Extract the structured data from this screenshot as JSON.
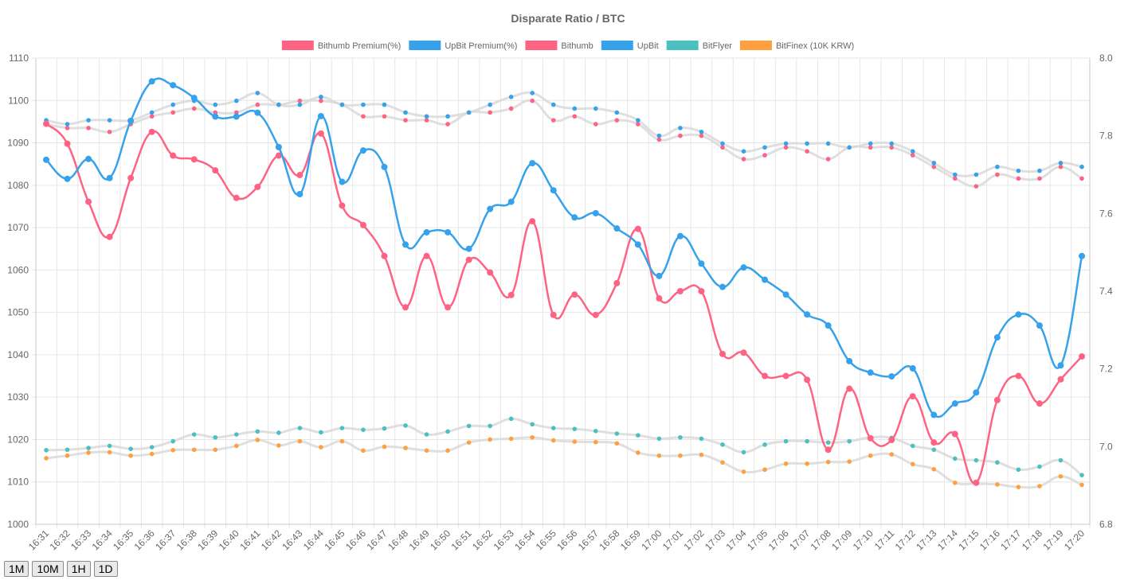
{
  "controls": {
    "range_buttons": [
      "1M",
      "10M",
      "1H",
      "1D"
    ]
  },
  "colors": {
    "bithumb": "#ff6384",
    "upbit": "#36a2eb",
    "bitflyer": "#4bc0c0",
    "bitfinex": "#ff9f40",
    "premium_line": "#d9d9d9",
    "grid": "#e6e6e6",
    "text": "#666666"
  },
  "chart_data": {
    "type": "line",
    "title": "Disparate Ratio / BTC",
    "xlabel": "",
    "ylabel": "",
    "categories": [
      "16:31",
      "16:32",
      "16:33",
      "16:34",
      "16:35",
      "16:36",
      "16:37",
      "16:38",
      "16:39",
      "16:40",
      "16:41",
      "16:42",
      "16:43",
      "16:44",
      "16:45",
      "16:46",
      "16:47",
      "16:48",
      "16:49",
      "16:50",
      "16:51",
      "16:52",
      "16:53",
      "16:54",
      "16:55",
      "16:56",
      "16:57",
      "16:58",
      "16:59",
      "17:00",
      "17:01",
      "17:02",
      "17:03",
      "17:04",
      "17:05",
      "17:06",
      "17:07",
      "17:08",
      "17:09",
      "17:10",
      "17:11",
      "17:12",
      "17:13",
      "17:14",
      "17:15",
      "17:16",
      "17:17",
      "17:18",
      "17:19",
      "17:20"
    ],
    "y_left": {
      "min": 1000,
      "max": 1110,
      "step": 10,
      "ticks": [
        "1000",
        "1010",
        "1020",
        "1030",
        "1040",
        "1050",
        "1060",
        "1070",
        "1080",
        "1090",
        "1100",
        "1110"
      ]
    },
    "y_right": {
      "min": 6.8,
      "max": 8.0,
      "step": 0.2,
      "ticks": [
        "6.8",
        "7.0",
        "7.2",
        "7.4",
        "7.6",
        "7.8",
        "8.0"
      ]
    },
    "legend": {
      "position": "top",
      "entries": [
        "Bithumb Premium(%)",
        "UpBit Premium(%)",
        "Bithumb",
        "UpBit",
        "BitFlyer",
        "BitFinex (10K KRW)"
      ]
    },
    "grid": true,
    "series": [
      {
        "name": "Bithumb Premium(%)",
        "axis": "right",
        "color": "#ff6384",
        "style": "premium",
        "values": [
          7.83,
          7.82,
          7.82,
          7.81,
          7.83,
          7.85,
          7.86,
          7.87,
          7.86,
          7.86,
          7.88,
          7.88,
          7.89,
          7.89,
          7.88,
          7.85,
          7.85,
          7.84,
          7.84,
          7.83,
          7.86,
          7.86,
          7.87,
          7.89,
          7.84,
          7.85,
          7.83,
          7.84,
          7.83,
          7.79,
          7.8,
          7.8,
          7.77,
          7.74,
          7.75,
          7.77,
          7.76,
          7.74,
          7.77,
          7.77,
          7.77,
          7.75,
          7.72,
          7.69,
          7.67,
          7.7,
          7.69,
          7.69,
          7.72,
          7.69
        ]
      },
      {
        "name": "UpBit Premium(%)",
        "axis": "right",
        "color": "#36a2eb",
        "style": "premium",
        "values": [
          7.84,
          7.83,
          7.84,
          7.84,
          7.84,
          7.86,
          7.88,
          7.89,
          7.88,
          7.89,
          7.91,
          7.88,
          7.88,
          7.9,
          7.88,
          7.88,
          7.88,
          7.86,
          7.85,
          7.85,
          7.86,
          7.88,
          7.9,
          7.91,
          7.88,
          7.87,
          7.87,
          7.86,
          7.84,
          7.8,
          7.82,
          7.81,
          7.78,
          7.76,
          7.77,
          7.78,
          7.78,
          7.78,
          7.77,
          7.78,
          7.78,
          7.76,
          7.73,
          7.7,
          7.7,
          7.72,
          7.71,
          7.71,
          7.73,
          7.72
        ]
      },
      {
        "name": "Bithumb",
        "axis": "left",
        "color": "#ff6384",
        "style": "main",
        "values": [
          1094.5,
          1089.8,
          1076.1,
          1067.8,
          1081.7,
          1092.6,
          1087.0,
          1086.1,
          1083.5,
          1077.0,
          1079.6,
          1087.0,
          1082.4,
          1092.2,
          1075.2,
          1070.6,
          1063.3,
          1051.2,
          1063.3,
          1051.2,
          1062.4,
          1059.4,
          1054.1,
          1071.5,
          1049.4,
          1054.2,
          1049.4,
          1056.9,
          1069.7,
          1053.3,
          1055.0,
          1055.0,
          1040.2,
          1040.5,
          1035.0,
          1035.0,
          1034.1,
          1017.6,
          1032.0,
          1020.3,
          1019.9,
          1030.2,
          1019.3,
          1021.3,
          1009.8,
          1029.3,
          1035.0,
          1028.5,
          1034.2,
          1039.6
        ]
      },
      {
        "name": "UpBit",
        "axis": "left",
        "color": "#36a2eb",
        "style": "main",
        "values": [
          1086.0,
          1081.5,
          1086.2,
          1081.7,
          1095.2,
          1104.5,
          1103.6,
          1100.6,
          1096.2,
          1096.2,
          1097.1,
          1089.0,
          1077.9,
          1096.3,
          1080.8,
          1088.2,
          1084.3,
          1066.0,
          1068.9,
          1068.9,
          1065.0,
          1074.4,
          1076.1,
          1085.2,
          1078.8,
          1072.4,
          1073.4,
          1069.8,
          1066.0,
          1058.6,
          1068.0,
          1061.5,
          1056.0,
          1060.6,
          1057.7,
          1054.2,
          1049.5,
          1046.9,
          1038.5,
          1035.8,
          1034.9,
          1036.8,
          1025.8,
          1028.5,
          1031.1,
          1044.1,
          1049.5,
          1046.9,
          1037.5,
          1063.3
        ]
      },
      {
        "name": "BitFlyer",
        "axis": "left",
        "color": "#4bc0c0",
        "style": "small",
        "values": [
          1017.5,
          1017.6,
          1018.0,
          1018.5,
          1017.8,
          1018.2,
          1019.6,
          1021.2,
          1020.5,
          1021.2,
          1021.9,
          1021.6,
          1022.7,
          1021.7,
          1022.7,
          1022.3,
          1022.6,
          1023.3,
          1021.2,
          1021.9,
          1023.2,
          1023.2,
          1024.9,
          1023.6,
          1022.7,
          1022.5,
          1022.0,
          1021.4,
          1021.0,
          1020.2,
          1020.5,
          1020.2,
          1018.8,
          1017.0,
          1018.8,
          1019.6,
          1019.6,
          1019.3,
          1019.6,
          1020.5,
          1020.4,
          1018.5,
          1017.6,
          1015.5,
          1015.1,
          1014.6,
          1012.9,
          1013.6,
          1015.1,
          1011.6
        ]
      },
      {
        "name": "BitFinex (10K KRW)",
        "axis": "left",
        "color": "#ff9f40",
        "style": "small",
        "values": [
          1015.6,
          1016.2,
          1016.9,
          1017.0,
          1016.2,
          1016.6,
          1017.5,
          1017.6,
          1017.6,
          1018.5,
          1019.9,
          1018.6,
          1019.6,
          1018.2,
          1019.6,
          1017.4,
          1018.3,
          1018.0,
          1017.4,
          1017.4,
          1019.3,
          1020.0,
          1020.2,
          1020.5,
          1019.8,
          1019.5,
          1019.4,
          1019.1,
          1016.9,
          1016.2,
          1016.2,
          1016.4,
          1014.6,
          1012.4,
          1012.9,
          1014.3,
          1014.3,
          1014.7,
          1014.8,
          1016.2,
          1016.5,
          1014.2,
          1013.0,
          1009.8,
          1009.6,
          1009.4,
          1008.8,
          1009.0,
          1011.3,
          1009.3
        ]
      }
    ]
  }
}
